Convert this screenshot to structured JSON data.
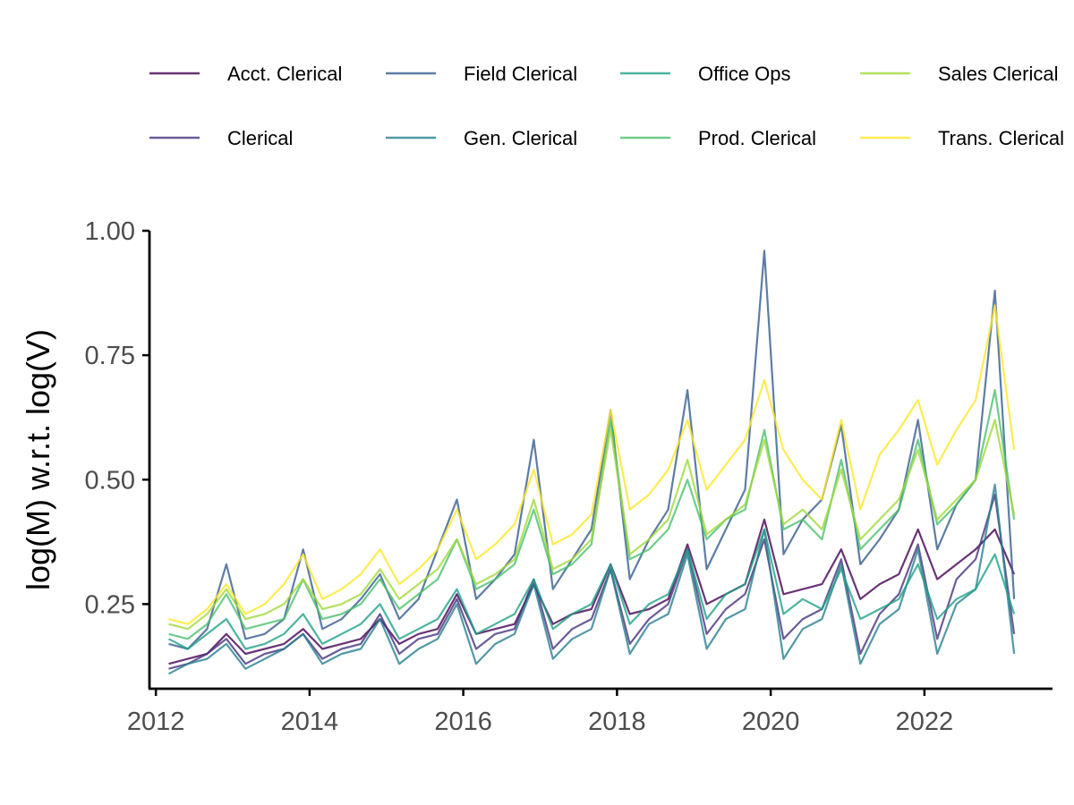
{
  "chart_data": {
    "type": "line",
    "title": "",
    "xlabel": "",
    "ylabel": "log(M) w.r.t. log(V)",
    "xlim": [
      "2011-12-01",
      "2023-09-01"
    ],
    "ylim": [
      0.08,
      1.0
    ],
    "x_ticks": [
      "2012",
      "2014",
      "2016",
      "2018",
      "2020",
      "2022"
    ],
    "y_ticks": [
      "0.25",
      "0.50",
      "0.75",
      "1.00"
    ],
    "grid": false,
    "legend_position": "top",
    "x": [
      "2012-03",
      "2012-06",
      "2012-09",
      "2012-12",
      "2013-03",
      "2013-06",
      "2013-09",
      "2013-12",
      "2014-03",
      "2014-06",
      "2014-09",
      "2014-12",
      "2015-03",
      "2015-06",
      "2015-09",
      "2015-12",
      "2016-03",
      "2016-06",
      "2016-09",
      "2016-12",
      "2017-03",
      "2017-06",
      "2017-09",
      "2017-12",
      "2018-03",
      "2018-06",
      "2018-09",
      "2018-12",
      "2019-03",
      "2019-06",
      "2019-09",
      "2019-12",
      "2020-03",
      "2020-06",
      "2020-09",
      "2020-12",
      "2021-03",
      "2021-06",
      "2021-09",
      "2021-12",
      "2022-03",
      "2022-06",
      "2022-09",
      "2022-12",
      "2023-03"
    ],
    "series": [
      {
        "name": "Acct. Clerical",
        "color": "#440154",
        "values": [
          0.13,
          0.14,
          0.15,
          0.19,
          0.15,
          0.16,
          0.17,
          0.2,
          0.16,
          0.17,
          0.18,
          0.22,
          0.17,
          0.19,
          0.2,
          0.27,
          0.19,
          0.2,
          0.21,
          0.29,
          0.21,
          0.23,
          0.24,
          0.33,
          0.23,
          0.24,
          0.26,
          0.37,
          0.25,
          0.27,
          0.29,
          0.42,
          0.27,
          0.28,
          0.29,
          0.36,
          0.26,
          0.29,
          0.31,
          0.4,
          0.3,
          0.33,
          0.36,
          0.4,
          0.31
        ]
      },
      {
        "name": "Clerical",
        "color": "#46337E",
        "values": [
          0.12,
          0.13,
          0.15,
          0.18,
          0.13,
          0.15,
          0.16,
          0.19,
          0.14,
          0.16,
          0.17,
          0.23,
          0.15,
          0.18,
          0.19,
          0.26,
          0.16,
          0.19,
          0.2,
          0.3,
          0.16,
          0.2,
          0.22,
          0.32,
          0.17,
          0.22,
          0.25,
          0.36,
          0.19,
          0.24,
          0.27,
          0.38,
          0.18,
          0.22,
          0.24,
          0.34,
          0.15,
          0.23,
          0.27,
          0.37,
          0.18,
          0.3,
          0.34,
          0.47,
          0.19
        ]
      },
      {
        "name": "Field Clerical",
        "color": "#365C8D",
        "values": [
          0.17,
          0.16,
          0.2,
          0.33,
          0.18,
          0.19,
          0.22,
          0.36,
          0.2,
          0.22,
          0.26,
          0.31,
          0.22,
          0.26,
          0.36,
          0.46,
          0.26,
          0.3,
          0.35,
          0.58,
          0.28,
          0.34,
          0.4,
          0.64,
          0.3,
          0.38,
          0.44,
          0.68,
          0.32,
          0.4,
          0.48,
          0.96,
          0.35,
          0.42,
          0.46,
          0.61,
          0.33,
          0.38,
          0.44,
          0.62,
          0.36,
          0.45,
          0.5,
          0.88,
          0.26
        ]
      },
      {
        "name": "Gen. Clerical",
        "color": "#277F8E",
        "values": [
          0.11,
          0.13,
          0.14,
          0.17,
          0.12,
          0.14,
          0.16,
          0.19,
          0.13,
          0.15,
          0.16,
          0.22,
          0.13,
          0.16,
          0.18,
          0.25,
          0.13,
          0.17,
          0.19,
          0.29,
          0.14,
          0.18,
          0.2,
          0.32,
          0.15,
          0.21,
          0.23,
          0.35,
          0.16,
          0.22,
          0.24,
          0.4,
          0.14,
          0.2,
          0.22,
          0.33,
          0.13,
          0.21,
          0.24,
          0.36,
          0.15,
          0.25,
          0.28,
          0.49,
          0.15
        ]
      },
      {
        "name": "Office Ops",
        "color": "#1FA187",
        "values": [
          0.18,
          0.16,
          0.19,
          0.22,
          0.16,
          0.17,
          0.19,
          0.23,
          0.17,
          0.19,
          0.21,
          0.25,
          0.18,
          0.2,
          0.22,
          0.28,
          0.19,
          0.21,
          0.23,
          0.3,
          0.2,
          0.23,
          0.25,
          0.33,
          0.21,
          0.25,
          0.27,
          0.36,
          0.22,
          0.27,
          0.29,
          0.4,
          0.23,
          0.26,
          0.24,
          0.32,
          0.22,
          0.24,
          0.26,
          0.33,
          0.22,
          0.26,
          0.28,
          0.35,
          0.23
        ]
      },
      {
        "name": "Prod. Clerical",
        "color": "#4AC16D",
        "values": [
          0.19,
          0.18,
          0.21,
          0.27,
          0.2,
          0.21,
          0.22,
          0.3,
          0.22,
          0.23,
          0.25,
          0.3,
          0.24,
          0.27,
          0.3,
          0.38,
          0.28,
          0.3,
          0.33,
          0.44,
          0.31,
          0.33,
          0.37,
          0.62,
          0.34,
          0.36,
          0.4,
          0.5,
          0.38,
          0.42,
          0.44,
          0.6,
          0.4,
          0.42,
          0.38,
          0.54,
          0.36,
          0.4,
          0.44,
          0.58,
          0.41,
          0.45,
          0.5,
          0.68,
          0.42
        ]
      },
      {
        "name": "Sales Clerical",
        "color": "#A0DA39",
        "values": [
          0.21,
          0.2,
          0.23,
          0.28,
          0.22,
          0.23,
          0.25,
          0.3,
          0.24,
          0.25,
          0.27,
          0.32,
          0.26,
          0.29,
          0.32,
          0.38,
          0.29,
          0.31,
          0.34,
          0.46,
          0.32,
          0.34,
          0.38,
          0.6,
          0.35,
          0.38,
          0.42,
          0.54,
          0.39,
          0.42,
          0.45,
          0.58,
          0.41,
          0.44,
          0.4,
          0.52,
          0.38,
          0.42,
          0.46,
          0.56,
          0.42,
          0.46,
          0.5,
          0.62,
          0.43
        ]
      },
      {
        "name": "Trans. Clerical",
        "color": "#FDE725",
        "values": [
          0.22,
          0.21,
          0.24,
          0.29,
          0.23,
          0.25,
          0.29,
          0.35,
          0.26,
          0.28,
          0.31,
          0.36,
          0.29,
          0.32,
          0.36,
          0.44,
          0.34,
          0.37,
          0.41,
          0.52,
          0.37,
          0.39,
          0.43,
          0.64,
          0.44,
          0.47,
          0.52,
          0.62,
          0.48,
          0.53,
          0.58,
          0.7,
          0.56,
          0.5,
          0.46,
          0.62,
          0.44,
          0.55,
          0.6,
          0.66,
          0.53,
          0.6,
          0.66,
          0.85,
          0.56
        ]
      }
    ]
  }
}
